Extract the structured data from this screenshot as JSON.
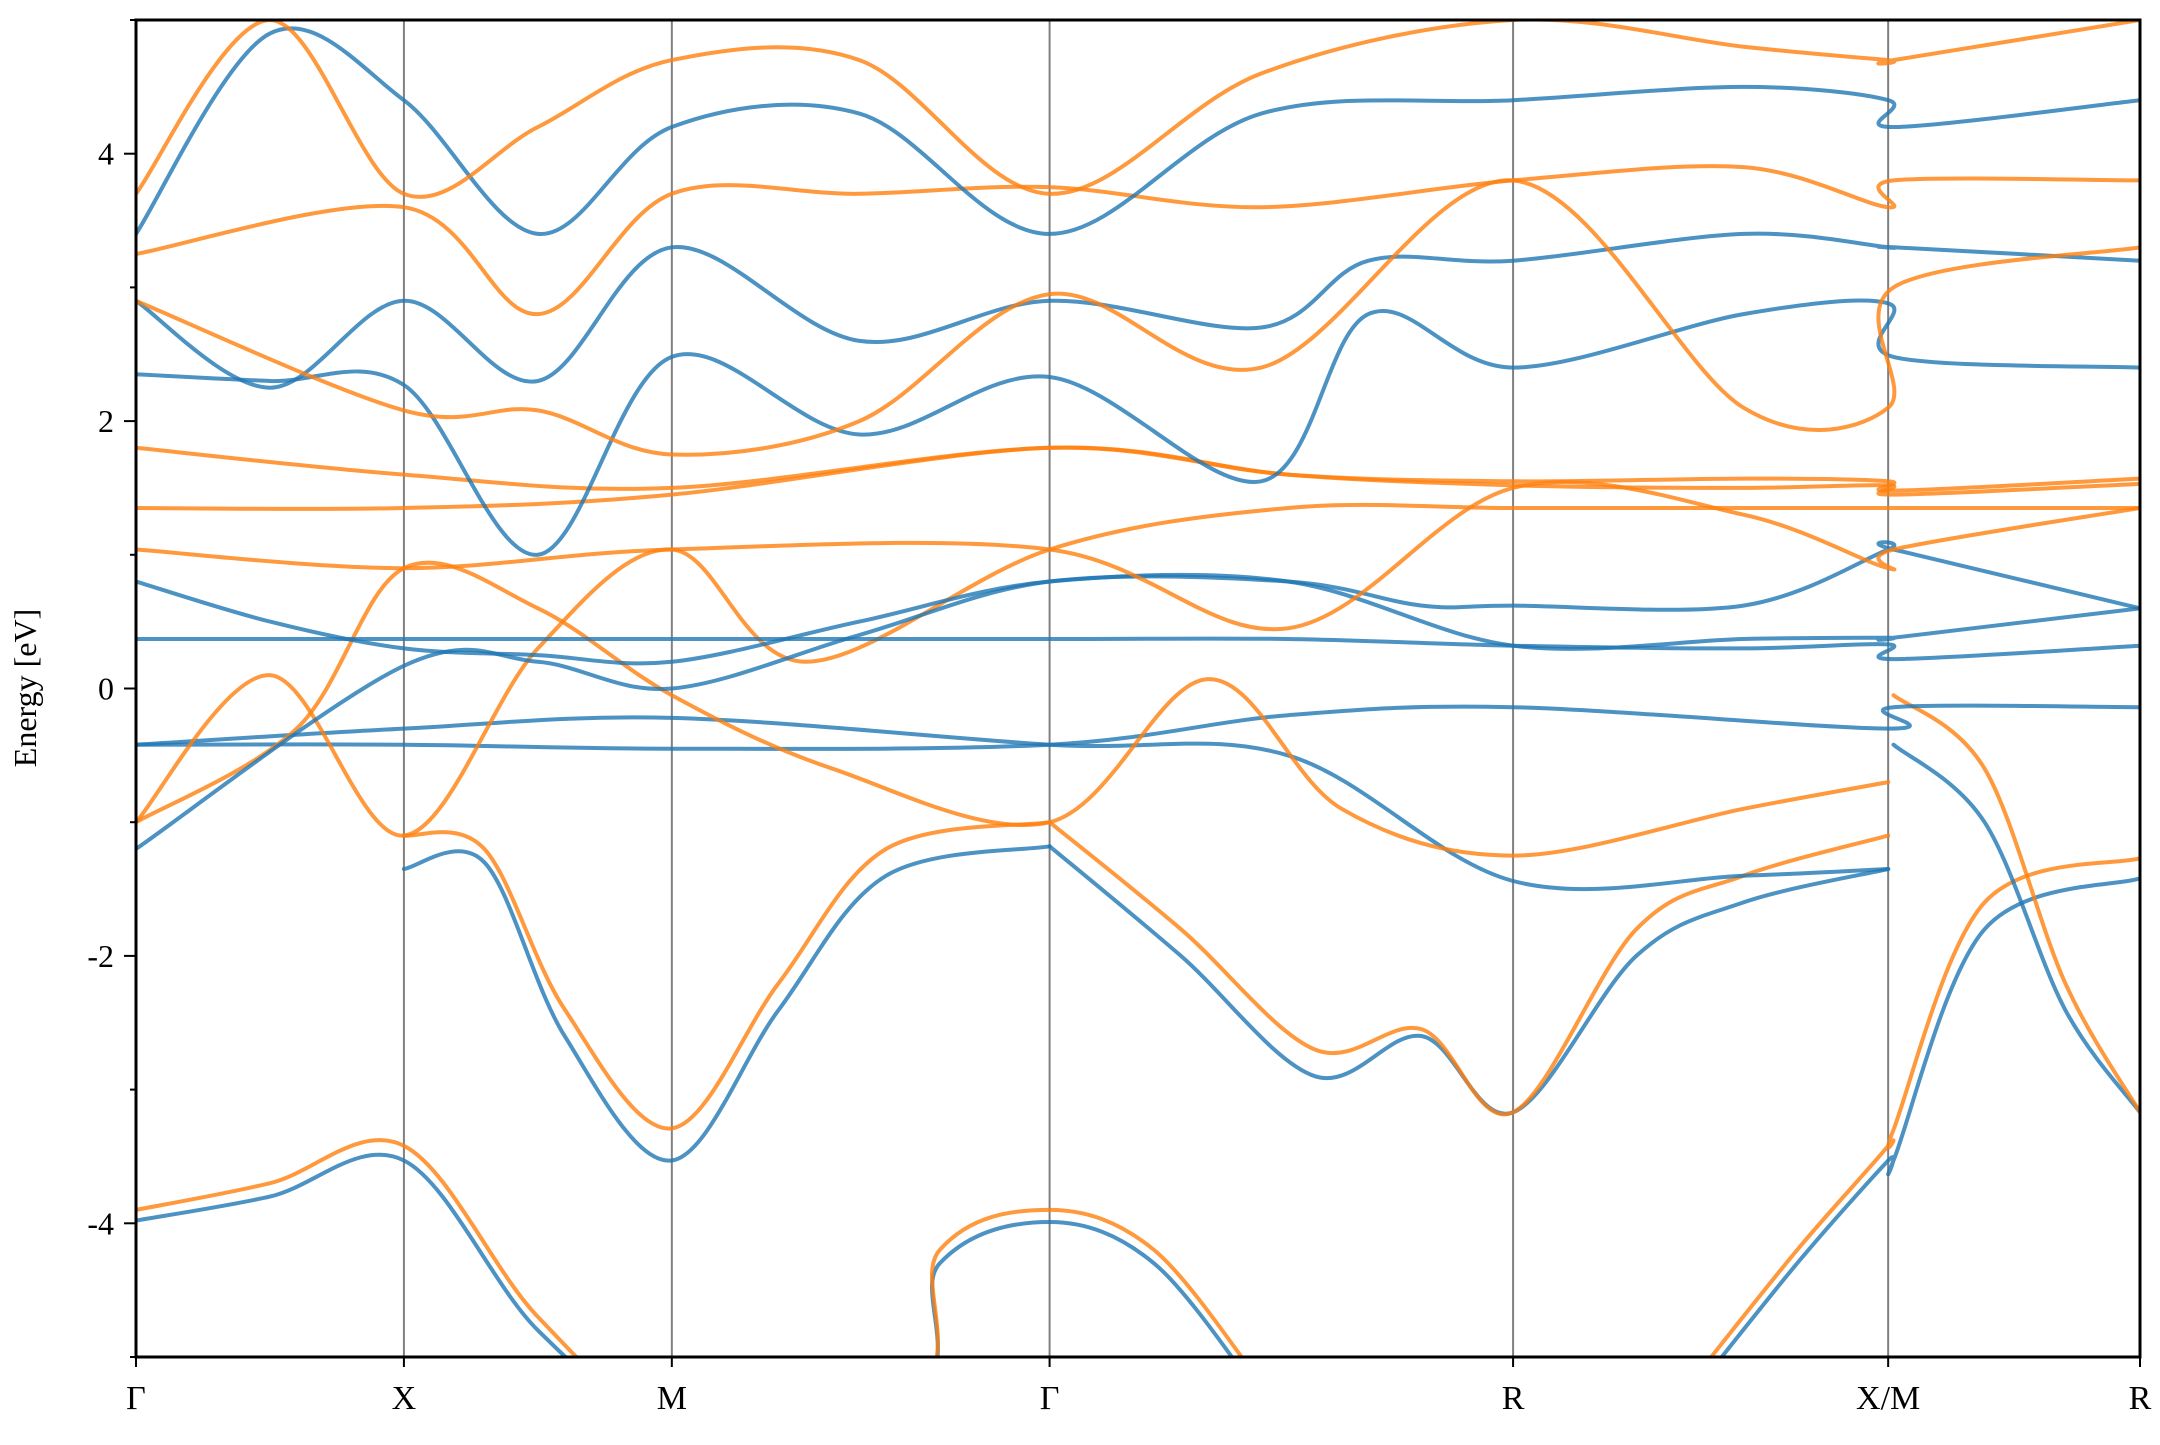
{
  "chart_data": {
    "type": "line",
    "title": "",
    "xlabel": "",
    "ylabel": "Energy [eV]",
    "ylim": [
      -5,
      5
    ],
    "yticks": [
      -4,
      -2,
      0,
      2,
      4
    ],
    "ytick_labels": [
      "-4",
      "-2",
      "0",
      "2",
      "4"
    ],
    "ytick_minor": [
      -5,
      -3,
      -1,
      1,
      3,
      5
    ],
    "xlim": [
      0,
      7.48
    ],
    "high_symmetry_points": [
      {
        "label": "Γ",
        "x": 0
      },
      {
        "label": "X",
        "x": 1.0
      },
      {
        "label": "M",
        "x": 2.0
      },
      {
        "label": "Γ",
        "x": 3.41
      },
      {
        "label": "R",
        "x": 5.14
      },
      {
        "label": "X/M",
        "x": 6.54
      },
      {
        "label": "R",
        "x": 7.48
      }
    ],
    "grid": false,
    "legend": "none",
    "series_colors": {
      "blue": "#1f77b4",
      "orange": "#ff7f0e"
    },
    "series": [
      {
        "color": "blue",
        "x": [
          0,
          0.5,
          1.0,
          1.5,
          2.0,
          2.7,
          3.41,
          4.3,
          5.14,
          5.8,
          6.54
        ],
        "y": [
          -3.98,
          -3.8,
          -3.53,
          -4.8,
          -5.5,
          -5.5,
          -5.5,
          -5.5,
          -5.5,
          -5.5,
          -5.5
        ]
      },
      {
        "color": "orange",
        "x": [
          0,
          0.5,
          1.0,
          1.5,
          2.0,
          2.7,
          3.41,
          4.3,
          5.14,
          5.8,
          6.54
        ],
        "y": [
          -3.9,
          -3.7,
          -3.42,
          -4.7,
          -5.5,
          -5.5,
          -5.5,
          -5.5,
          -5.5,
          -5.5,
          -5.5
        ]
      },
      {
        "color": "blue",
        "x": [
          0,
          2.7,
          3.0,
          3.41,
          3.8,
          4.2
        ],
        "y": [
          -5.5,
          -5.5,
          -4.3,
          -3.99,
          -4.3,
          -5.3
        ]
      },
      {
        "color": "orange",
        "x": [
          0,
          2.7,
          3.0,
          3.41,
          3.8,
          4.2
        ],
        "y": [
          -5.5,
          -5.5,
          -4.2,
          -3.9,
          -4.2,
          -5.2
        ]
      },
      {
        "color": "blue",
        "x": [
          5.8,
          6.2,
          6.54,
          6.56,
          6.9,
          7.48
        ],
        "y": [
          -5.3,
          -4.3,
          -3.53,
          -3.53,
          -1.8,
          -1.42
        ]
      },
      {
        "color": "orange",
        "x": [
          5.8,
          6.2,
          6.54,
          6.56,
          6.9,
          7.48
        ],
        "y": [
          -5.2,
          -4.2,
          -3.42,
          -3.3,
          -1.6,
          -1.27
        ]
      },
      {
        "color": "blue",
        "x": [
          1.0,
          1.3,
          1.6,
          2.0,
          2.4,
          2.8,
          3.41
        ],
        "y": [
          -1.35,
          -1.3,
          -2.6,
          -3.53,
          -2.4,
          -1.4,
          -1.18
        ]
      },
      {
        "color": "orange",
        "x": [
          1.0,
          1.3,
          1.6,
          2.0,
          2.4,
          2.8,
          3.41
        ],
        "y": [
          -1.1,
          -1.2,
          -2.4,
          -3.29,
          -2.2,
          -1.2,
          -1.0
        ]
      },
      {
        "color": "blue",
        "x": [
          3.41,
          3.9,
          4.4,
          4.8,
          5.14,
          5.6,
          6.0,
          6.54
        ],
        "y": [
          -1.18,
          -2.0,
          -2.9,
          -2.6,
          -3.17,
          -2.0,
          -1.6,
          -1.35
        ]
      },
      {
        "color": "orange",
        "x": [
          3.41,
          3.9,
          4.4,
          4.8,
          5.14,
          5.6,
          6.0,
          6.54
        ],
        "y": [
          -1.0,
          -1.8,
          -2.7,
          -2.55,
          -3.17,
          -1.8,
          -1.4,
          -1.1
        ]
      },
      {
        "color": "blue",
        "x": [
          6.56,
          6.9,
          7.2,
          7.48
        ],
        "y": [
          -0.42,
          -1.0,
          -2.4,
          -3.17
        ]
      },
      {
        "color": "orange",
        "x": [
          6.56,
          6.9,
          7.2,
          7.48
        ],
        "y": [
          -0.05,
          -0.6,
          -2.2,
          -3.17
        ]
      },
      {
        "color": "blue",
        "x": [
          0,
          1.0,
          2.0,
          3.41,
          4.3,
          5.14,
          6.0,
          6.54
        ],
        "y": [
          -0.42,
          -0.3,
          -0.22,
          -0.42,
          -0.5,
          -1.44,
          -1.4,
          -1.35
        ]
      },
      {
        "color": "blue",
        "x": [
          0,
          1.0,
          2.0,
          3.41,
          4.3,
          5.14,
          6.54,
          6.56,
          7.48
        ],
        "y": [
          -0.42,
          -0.42,
          -0.45,
          -0.42,
          -0.2,
          -0.14,
          -0.3,
          -0.14,
          -0.14
        ]
      },
      {
        "color": "orange",
        "x": [
          0,
          0.6,
          1.0,
          1.5,
          2.0,
          2.6,
          3.41,
          4.0,
          4.5,
          5.14,
          6.0,
          6.54
        ],
        "y": [
          -1.0,
          -0.3,
          0.9,
          0.6,
          -0.05,
          -0.6,
          -1.0,
          0.07,
          -0.9,
          -1.25,
          -0.9,
          -0.7
        ]
      },
      {
        "color": "orange",
        "x": [
          0,
          0.5,
          1.0,
          1.5,
          2.0,
          2.5,
          3.41,
          4.3,
          5.14,
          6.0,
          6.54,
          6.56,
          7.48
        ],
        "y": [
          -1.0,
          0.1,
          -1.1,
          0.3,
          1.04,
          0.2,
          1.04,
          1.35,
          1.35,
          1.35,
          1.35,
          1.35,
          1.35
        ]
      },
      {
        "color": "blue",
        "x": [
          0,
          1.0,
          2.0,
          3.41,
          4.3,
          5.14,
          6.0,
          6.54,
          6.56,
          7.48
        ],
        "y": [
          0.37,
          0.37,
          0.37,
          0.37,
          0.37,
          0.32,
          0.3,
          0.33,
          0.22,
          0.32
        ]
      },
      {
        "color": "blue",
        "x": [
          0,
          0.5,
          1.0,
          1.5,
          2.0,
          2.7,
          3.41,
          4.3,
          5.14,
          6.0,
          6.54,
          6.56,
          7.48
        ],
        "y": [
          0.8,
          0.5,
          0.3,
          0.25,
          0.2,
          0.5,
          0.8,
          0.8,
          0.32,
          0.37,
          0.38,
          0.38,
          0.6
        ]
      },
      {
        "color": "blue",
        "x": [
          0,
          1.0,
          1.5,
          2.0,
          2.7,
          3.41,
          4.3,
          4.8,
          5.14,
          6.0,
          6.54,
          6.56,
          7.48
        ],
        "y": [
          -1.2,
          0.17,
          0.2,
          0.0,
          0.4,
          0.8,
          0.8,
          0.62,
          0.62,
          0.62,
          1.04,
          1.04,
          0.6
        ]
      },
      {
        "color": "orange",
        "x": [
          0,
          1.0,
          2.0,
          3.41,
          4.3,
          5.14,
          6.0,
          6.54,
          6.56,
          7.48
        ],
        "y": [
          1.04,
          0.9,
          1.04,
          1.04,
          0.45,
          1.5,
          1.3,
          0.9,
          1.04,
          1.35
        ]
      },
      {
        "color": "orange",
        "x": [
          0,
          1.0,
          2.0,
          3.41,
          4.3,
          5.14,
          6.0,
          6.54,
          6.56,
          7.48
        ],
        "y": [
          1.35,
          1.35,
          1.45,
          1.8,
          1.6,
          1.52,
          1.5,
          1.52,
          1.45,
          1.53
        ]
      },
      {
        "color": "orange",
        "x": [
          0,
          1.0,
          2.0,
          3.41,
          4.3,
          5.14,
          6.0,
          6.54,
          6.56,
          7.48
        ],
        "y": [
          1.8,
          1.6,
          1.5,
          1.8,
          1.6,
          1.55,
          1.57,
          1.55,
          1.48,
          1.57
        ]
      },
      {
        "color": "blue",
        "x": [
          0,
          0.5,
          1.0,
          1.5,
          2.0,
          2.7,
          3.41,
          4.2,
          4.6,
          5.14,
          6.0,
          6.54,
          6.56,
          7.48
        ],
        "y": [
          2.35,
          2.3,
          2.27,
          1.0,
          2.48,
          1.9,
          2.33,
          1.55,
          2.8,
          2.4,
          2.8,
          2.88,
          2.48,
          2.4
        ]
      },
      {
        "color": "blue",
        "x": [
          0,
          0.5,
          1.0,
          1.5,
          2.0,
          2.7,
          3.41,
          4.2,
          4.6,
          5.14,
          6.0,
          6.54,
          6.56,
          7.48
        ],
        "y": [
          2.9,
          2.25,
          2.9,
          2.3,
          3.3,
          2.6,
          2.9,
          2.7,
          3.2,
          3.2,
          3.4,
          3.3,
          3.3,
          3.2
        ]
      },
      {
        "color": "orange",
        "x": [
          0,
          1.0,
          1.5,
          2.0,
          2.7,
          3.41,
          4.2,
          5.14,
          6.0,
          6.54,
          6.56,
          7.48
        ],
        "y": [
          2.9,
          2.08,
          2.08,
          1.75,
          2.0,
          2.95,
          2.4,
          3.8,
          2.1,
          2.1,
          3.0,
          3.3
        ]
      },
      {
        "color": "orange",
        "x": [
          0,
          1.0,
          1.5,
          2.0,
          2.7,
          3.41,
          4.2,
          5.14,
          6.0,
          6.54,
          6.56,
          7.48
        ],
        "y": [
          3.25,
          3.6,
          2.8,
          3.7,
          3.7,
          3.75,
          3.6,
          3.8,
          3.9,
          3.6,
          3.8,
          3.8
        ]
      },
      {
        "color": "blue",
        "x": [
          0,
          0.5,
          1.0,
          1.5,
          2.0,
          2.7,
          3.41,
          4.2,
          5.14,
          6.0,
          6.54,
          6.56,
          7.48
        ],
        "y": [
          3.4,
          4.9,
          4.4,
          3.4,
          4.2,
          4.3,
          3.4,
          4.3,
          4.4,
          4.5,
          4.4,
          4.2,
          4.4
        ]
      },
      {
        "color": "orange",
        "x": [
          0,
          0.5,
          1.0,
          1.5,
          2.0,
          2.7,
          3.41,
          4.2,
          5.14,
          6.0,
          6.54,
          6.56,
          7.48
        ],
        "y": [
          3.7,
          5.0,
          3.7,
          4.2,
          4.7,
          4.7,
          3.7,
          4.6,
          5.0,
          4.8,
          4.7,
          4.7,
          5.0
        ]
      }
    ]
  }
}
